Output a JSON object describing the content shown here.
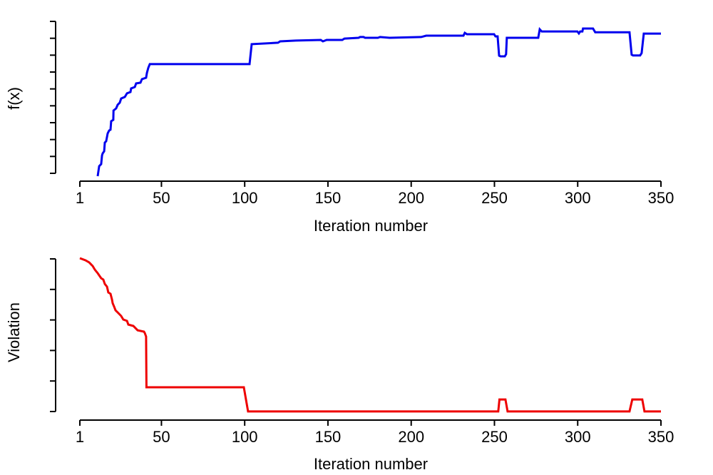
{
  "figure": {
    "background": "#ffffff",
    "text_color": "#000000"
  },
  "chart_data": [
    {
      "type": "line",
      "id": "fx",
      "title": "",
      "xlabel": "Iteration number",
      "ylabel": "f(x)",
      "xlim": [
        1,
        350
      ],
      "ylim": [
        0,
        1
      ],
      "x_ticks": [
        1,
        50,
        100,
        150,
        200,
        250,
        300,
        350
      ],
      "y_ticks_count": 10,
      "y_tick_labels_shown": false,
      "grid": false,
      "legend": "none",
      "series": [
        {
          "name": "f(x)",
          "color": "#0000EE",
          "points": [
            [
              11.7,
              0.0
            ],
            [
              12.6,
              0.065
            ],
            [
              13.8,
              0.078
            ],
            [
              14.3,
              0.134
            ],
            [
              14.7,
              0.147
            ],
            [
              15.6,
              0.161
            ],
            [
              16.0,
              0.217
            ],
            [
              16.8,
              0.226
            ],
            [
              17.7,
              0.276
            ],
            [
              18.6,
              0.295
            ],
            [
              19.4,
              0.3
            ],
            [
              19.8,
              0.355
            ],
            [
              21.1,
              0.364
            ],
            [
              21.2,
              0.424
            ],
            [
              22.8,
              0.438
            ],
            [
              23.7,
              0.461
            ],
            [
              25.0,
              0.475
            ],
            [
              25.8,
              0.502
            ],
            [
              28.0,
              0.512
            ],
            [
              29.3,
              0.535
            ],
            [
              31.4,
              0.544
            ],
            [
              31.8,
              0.567
            ],
            [
              34.0,
              0.576
            ],
            [
              34.8,
              0.599
            ],
            [
              37.4,
              0.604
            ],
            [
              38.3,
              0.627
            ],
            [
              40.8,
              0.636
            ],
            [
              41.3,
              0.668
            ],
            [
              42.1,
              0.7
            ],
            [
              43.0,
              0.724
            ],
            [
              102.9,
              0.724
            ],
            [
              104.2,
              0.853
            ],
            [
              120.0,
              0.862
            ],
            [
              121.3,
              0.871
            ],
            [
              130.7,
              0.876
            ],
            [
              145.7,
              0.88
            ],
            [
              147.0,
              0.871
            ],
            [
              149.2,
              0.88
            ],
            [
              158.6,
              0.88
            ],
            [
              159.9,
              0.889
            ],
            [
              168.4,
              0.894
            ],
            [
              169.3,
              0.899
            ],
            [
              171.4,
              0.899
            ],
            [
              172.3,
              0.894
            ],
            [
              180.0,
              0.894
            ],
            [
              181.3,
              0.899
            ],
            [
              187.0,
              0.894
            ],
            [
              206.0,
              0.899
            ],
            [
              209.0,
              0.908
            ],
            [
              231.4,
              0.908
            ],
            [
              232.2,
              0.926
            ],
            [
              233.5,
              0.917
            ],
            [
              249.8,
              0.917
            ],
            [
              250.6,
              0.903
            ],
            [
              251.9,
              0.903
            ],
            [
              252.8,
              0.779
            ],
            [
              253.6,
              0.774
            ],
            [
              256.2,
              0.774
            ],
            [
              257.0,
              0.788
            ],
            [
              257.4,
              0.894
            ],
            [
              276.3,
              0.894
            ],
            [
              277.2,
              0.949
            ],
            [
              278.4,
              0.935
            ],
            [
              299.8,
              0.935
            ],
            [
              300.7,
              0.922
            ],
            [
              301.5,
              0.935
            ],
            [
              302.8,
              0.935
            ],
            [
              303.2,
              0.954
            ],
            [
              309.2,
              0.954
            ],
            [
              310.5,
              0.93
            ],
            [
              331.1,
              0.93
            ],
            [
              332.4,
              0.785
            ],
            [
              333.2,
              0.78
            ],
            [
              337.5,
              0.78
            ],
            [
              338.4,
              0.795
            ],
            [
              339.7,
              0.921
            ],
            [
              350.0,
              0.921
            ]
          ]
        }
      ]
    },
    {
      "type": "line",
      "id": "violation",
      "title": "",
      "xlabel": "Iteration number",
      "ylabel": "Violation",
      "xlim": [
        1,
        350
      ],
      "ylim": [
        0,
        1
      ],
      "x_ticks": [
        1,
        50,
        100,
        150,
        200,
        250,
        300,
        350
      ],
      "y_ticks_count": 6,
      "y_tick_labels_shown": false,
      "grid": false,
      "legend": "none",
      "series": [
        {
          "name": "Violation",
          "color": "#EE0000",
          "points": [
            [
              1.0,
              1.0
            ],
            [
              4.4,
              0.986
            ],
            [
              6.6,
              0.972
            ],
            [
              8.7,
              0.949
            ],
            [
              10.0,
              0.926
            ],
            [
              11.7,
              0.903
            ],
            [
              13.8,
              0.87
            ],
            [
              15.1,
              0.861
            ],
            [
              16.0,
              0.833
            ],
            [
              17.3,
              0.815
            ],
            [
              18.1,
              0.778
            ],
            [
              19.4,
              0.769
            ],
            [
              20.3,
              0.731
            ],
            [
              20.7,
              0.708
            ],
            [
              21.6,
              0.685
            ],
            [
              22.4,
              0.662
            ],
            [
              23.7,
              0.648
            ],
            [
              25.8,
              0.625
            ],
            [
              27.1,
              0.602
            ],
            [
              29.3,
              0.593
            ],
            [
              30.1,
              0.569
            ],
            [
              33.1,
              0.56
            ],
            [
              35.7,
              0.532
            ],
            [
              39.5,
              0.523
            ],
            [
              40.0,
              0.514
            ],
            [
              40.8,
              0.491
            ],
            [
              41.0,
              0.162
            ],
            [
              99.5,
              0.162
            ],
            [
              102.0,
              0.005
            ],
            [
              252.3,
              0.005
            ],
            [
              253.0,
              0.083
            ],
            [
              256.6,
              0.083
            ],
            [
              257.9,
              0.005
            ],
            [
              331.1,
              0.005
            ],
            [
              332.8,
              0.083
            ],
            [
              338.8,
              0.083
            ],
            [
              340.1,
              0.005
            ],
            [
              350.0,
              0.005
            ]
          ]
        }
      ]
    }
  ]
}
